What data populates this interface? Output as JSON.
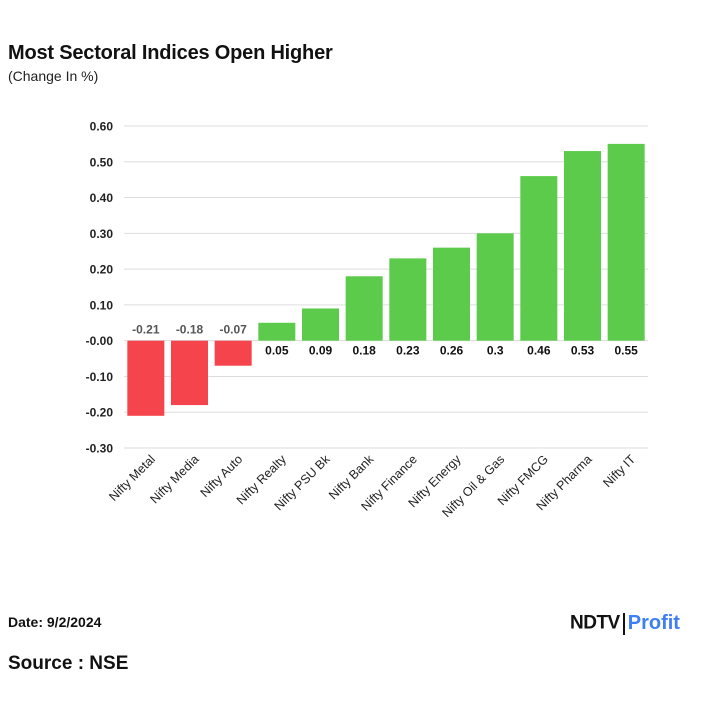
{
  "chart_data": {
    "type": "bar",
    "title": "Most Sectoral Indices Open Higher",
    "subtitle": "(Change In %)",
    "xlabel": "",
    "ylabel": "",
    "ylim": [
      -0.3,
      0.6
    ],
    "yticks": [
      0.6,
      0.5,
      0.4,
      0.3,
      0.2,
      0.1,
      0.0,
      -0.1,
      -0.2,
      -0.3
    ],
    "ytick_labels": [
      "0.60",
      "0.50",
      "0.40",
      "0.30",
      "0.20",
      "0.10",
      "-0.00",
      "-0.10",
      "-0.20",
      "-0.30"
    ],
    "grid": true,
    "categories": [
      "Nifty Metal",
      "Nifty Media",
      "Nifty Auto",
      "Nifty Realty",
      "Nifty PSU Bk",
      "Nifty Bank",
      "Nifty Finance",
      "Nifty Energy",
      "Nifty Oil & Gas",
      "Nifty FMCG",
      "Nifty Pharma",
      "Nifty IT"
    ],
    "values": [
      -0.21,
      -0.18,
      -0.07,
      0.05,
      0.09,
      0.18,
      0.23,
      0.26,
      0.3,
      0.46,
      0.53,
      0.55
    ],
    "value_labels": [
      "-0.21",
      "-0.18",
      "-0.07",
      "0.05",
      "0.09",
      "0.18",
      "0.23",
      "0.26",
      "0.3",
      "0.46",
      "0.53",
      "0.55"
    ],
    "colors": {
      "positive": "#5ccb4b",
      "negative": "#f5444c",
      "grid": "#dddddd",
      "negative_label": "#555555",
      "positive_label": "#111111"
    }
  },
  "footer": {
    "date": "Date: 9/2/2024",
    "source": "Source : NSE",
    "logo_brand": "NDTV",
    "logo_product": "Profit"
  }
}
